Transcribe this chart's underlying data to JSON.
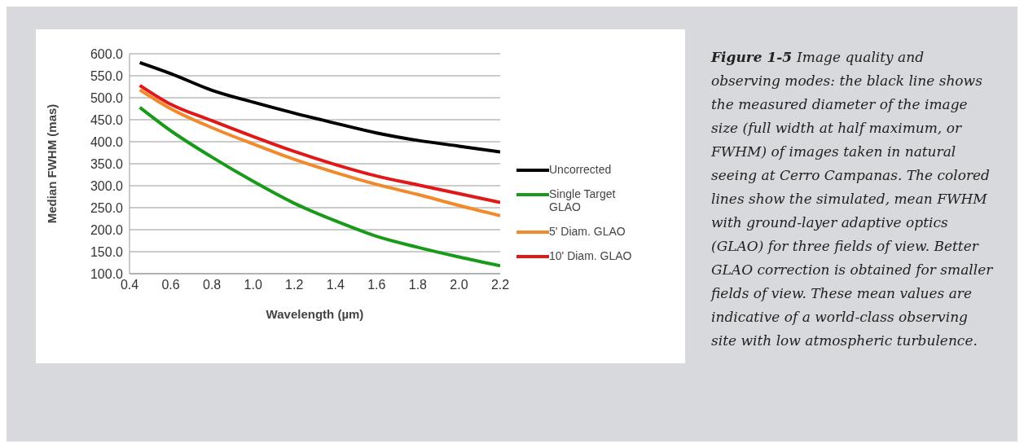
{
  "chart_data": {
    "type": "line",
    "xlabel": "Wavelength (µm)",
    "ylabel": "Median FWHM (mas)",
    "x": [
      0.45,
      0.6,
      0.8,
      1.0,
      1.2,
      1.4,
      1.6,
      1.8,
      2.0,
      2.2
    ],
    "series": [
      {
        "name": "Uncorrected",
        "color": "#000000",
        "values": [
          580,
          555,
          517,
          490,
          465,
          442,
          420,
          403,
          390,
          377
        ]
      },
      {
        "name": "Single Target GLAO",
        "color": "#1a9a1a",
        "values": [
          478,
          425,
          365,
          310,
          260,
          220,
          185,
          160,
          138,
          118
        ]
      },
      {
        "name": "5' Diam. GLAO",
        "color": "#f08a2c",
        "values": [
          518,
          475,
          432,
          395,
          360,
          330,
          303,
          280,
          255,
          232
        ]
      },
      {
        "name": "10' Diam. GLAO",
        "color": "#e01818",
        "values": [
          528,
          485,
          448,
          412,
          378,
          348,
          322,
          302,
          282,
          262
        ]
      }
    ],
    "xlim": [
      0.4,
      2.2
    ],
    "xticks": [
      0.4,
      0.6,
      0.8,
      {
        "value": 1,
        "label": "1.0"
      },
      1.2,
      1.4,
      1.6,
      1.8,
      {
        "value": 2,
        "label": "2.0"
      },
      2.2
    ],
    "ylim": [
      100,
      600
    ],
    "yticks": [
      {
        "value": 100,
        "label": "100.0"
      },
      {
        "value": 150,
        "label": "150.0"
      },
      {
        "value": 200,
        "label": "200.0"
      },
      {
        "value": 250,
        "label": "250.0"
      },
      {
        "value": 300,
        "label": "300.0"
      },
      {
        "value": 350,
        "label": "350.0"
      },
      {
        "value": 400,
        "label": "400.0"
      },
      {
        "value": 450,
        "label": "450.0"
      },
      {
        "value": 500,
        "label": "500.0"
      },
      {
        "value": 550,
        "label": "550.0"
      },
      {
        "value": 600,
        "label": "600.0"
      }
    ],
    "grid": "y",
    "legend": "right",
    "marker": "none",
    "line_style": "solid",
    "annotations": [
      "Figure 1-5",
      "Image quality and observing modes: the black line shows the measured diameter of the image size (full width at half maximum, or FWHM) of images taken in natural seeing at Cerro Campanas. The colored lines show the simulated, mean FWHM with ground-layer adaptive optics (GLAO) for three fields of view. Better GLAO correction is obtained for smaller fields of view. These mean values are indicative of a world-class observing site with low atmospheric turbulence."
    ]
  }
}
